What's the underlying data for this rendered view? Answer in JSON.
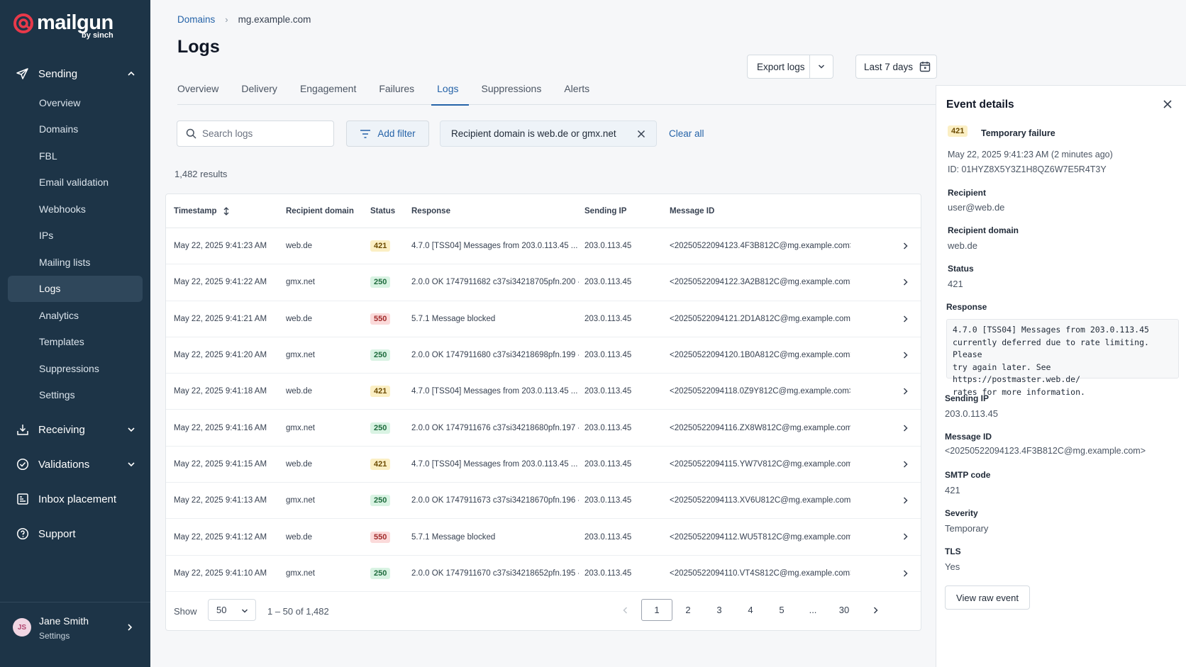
{
  "brand": {
    "name": "mailgun",
    "sub": "by sinch"
  },
  "sidebar": {
    "sections": [
      {
        "label": "Sending",
        "icon": "send-icon",
        "expanded": true
      },
      {
        "label": "Receiving",
        "icon": "inbox-download-icon",
        "expanded": false
      },
      {
        "label": "Validations",
        "icon": "check-circle-icon",
        "expanded": false
      },
      {
        "label": "Inbox placement",
        "icon": "chart-box-icon"
      },
      {
        "label": "Support",
        "icon": "help-circle-icon"
      }
    ],
    "sending_items": [
      "Overview",
      "Domains",
      "FBL",
      "Email validation",
      "Webhooks",
      "IPs",
      "Mailing lists",
      "Logs",
      "Analytics",
      "Templates",
      "Suppressions",
      "Settings"
    ],
    "active_item": "Logs"
  },
  "user": {
    "initials": "JS",
    "name": "Jane Smith",
    "sub": "Settings"
  },
  "breadcrumb": {
    "root": "Domains",
    "current": "mg.example.com"
  },
  "page": {
    "title": "Logs"
  },
  "toolbar": {
    "export_label": "Export logs",
    "date_range": "Last 7 days"
  },
  "tabs": [
    "Overview",
    "Delivery",
    "Engagement",
    "Failures",
    "Logs",
    "Suppressions",
    "Alerts"
  ],
  "active_tab": "Logs",
  "filters": {
    "search_placeholder": "Search logs",
    "add_filter_label": "Add filter",
    "chip_label": "Recipient domain is web.de or gmx.net",
    "clear_all_label": "Clear all"
  },
  "results_count": "1,482 results",
  "table": {
    "columns": [
      "Timestamp",
      "Recipient domain",
      "Status",
      "Response",
      "Sending IP",
      "Message ID"
    ],
    "rows": [
      {
        "timestamp": "May 22, 2025 9:41:23 AM",
        "domain": "web.de",
        "status": "421",
        "response": "4.7.0 [TSS04] Messages from 203.0.113.45 ...",
        "ip": "203.0.113.45",
        "message_id": "<20250522094123.4F3B812C@mg.example.com>"
      },
      {
        "timestamp": "May 22, 2025 9:41:22 AM",
        "domain": "gmx.net",
        "status": "250",
        "response": "2.0.0 OK 1747911682 c37si34218705pfn.200 -...",
        "ip": "203.0.113.45",
        "message_id": "<20250522094122.3A2B812C@mg.example.com>"
      },
      {
        "timestamp": "May 22, 2025 9:41:21 AM",
        "domain": "web.de",
        "status": "550",
        "response": "5.7.1 Message blocked",
        "ip": "203.0.113.45",
        "message_id": "<20250522094121.2D1A812C@mg.example.com>"
      },
      {
        "timestamp": "May 22, 2025 9:41:20 AM",
        "domain": "gmx.net",
        "status": "250",
        "response": "2.0.0 OK 1747911680 c37si34218698pfn.199 -...",
        "ip": "203.0.113.45",
        "message_id": "<20250522094120.1B0A812C@mg.example.com>"
      },
      {
        "timestamp": "May 22, 2025 9:41:18 AM",
        "domain": "web.de",
        "status": "421",
        "response": "4.7.0 [TSS04] Messages from 203.0.113.45 ...",
        "ip": "203.0.113.45",
        "message_id": "<20250522094118.0Z9Y812C@mg.example.com>"
      },
      {
        "timestamp": "May 22, 2025 9:41:16 AM",
        "domain": "gmx.net",
        "status": "250",
        "response": "2.0.0 OK 1747911676 c37si34218680pfn.197 -...",
        "ip": "203.0.113.45",
        "message_id": "<20250522094116.ZX8W812C@mg.example.com>"
      },
      {
        "timestamp": "May 22, 2025 9:41:15 AM",
        "domain": "web.de",
        "status": "421",
        "response": "4.7.0 [TSS04] Messages from 203.0.113.45 ...",
        "ip": "203.0.113.45",
        "message_id": "<20250522094115.YW7V812C@mg.example.com>"
      },
      {
        "timestamp": "May 22, 2025 9:41:13 AM",
        "domain": "gmx.net",
        "status": "250",
        "response": "2.0.0 OK 1747911673 c37si34218670pfn.196 -...",
        "ip": "203.0.113.45",
        "message_id": "<20250522094113.XV6U812C@mg.example.com>"
      },
      {
        "timestamp": "May 22, 2025 9:41:12 AM",
        "domain": "web.de",
        "status": "550",
        "response": "5.7.1 Message blocked",
        "ip": "203.0.113.45",
        "message_id": "<20250522094112.WU5T812C@mg.example.com>"
      },
      {
        "timestamp": "May 22, 2025 9:41:10 AM",
        "domain": "gmx.net",
        "status": "250",
        "response": "2.0.0 OK 1747911670 c37si34218652pfn.195 -...",
        "ip": "203.0.113.45",
        "message_id": "<20250522094110.VT4S812C@mg.example.com>"
      }
    ]
  },
  "pagination": {
    "show_label": "Show",
    "per_page": "50",
    "range": "1 – 50 of 1,482",
    "pages": [
      "1",
      "2",
      "3",
      "4",
      "5",
      "...",
      "30"
    ],
    "current": "1"
  },
  "details": {
    "title": "Event details",
    "status_code": "421",
    "status_label": "Temporary failure",
    "timestamp": "May 22, 2025 9:41:23 AM (2 minutes ago)",
    "id_line": "ID: 01HYZ8X5Y3Z1H8QZ6W7E5R4T3Y",
    "fields_top": [
      {
        "label": "Recipient",
        "value": "user@web.de"
      },
      {
        "label": "Recipient domain",
        "value": "web.de"
      },
      {
        "label": "Status",
        "value": "421"
      }
    ],
    "response_label": "Response",
    "response_text": "4.7.0 [TSS04] Messages from 203.0.113.45\ncurrently deferred due to rate limiting. Please\ntry again later. See https://postmaster.web.de/\nrates for more information.",
    "fields_bottom": [
      {
        "label": "Sending IP",
        "value": "203.0.113.45"
      },
      {
        "label": "Message ID",
        "value": "<20250522094123.4F3B812C@mg.example.com>"
      },
      {
        "label": "SMTP code",
        "value": "421"
      },
      {
        "label": "Severity",
        "value": "Temporary"
      },
      {
        "label": "TLS",
        "value": "Yes"
      }
    ],
    "raw_button": "View raw event"
  },
  "colors": {
    "sidebar": "#1d3447",
    "accent": "#2563a8",
    "brand_red": "#e8394a"
  }
}
